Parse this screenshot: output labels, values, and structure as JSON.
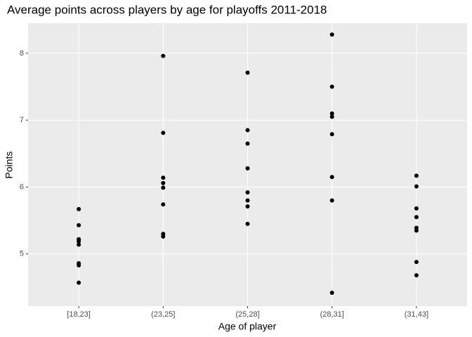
{
  "chart_data": {
    "type": "strip",
    "title": "Average points across players by age for playoffs 2011-2018",
    "x_label": "Age of player",
    "y_label": "Points",
    "categories": [
      "[18,23]",
      "(23,25]",
      "(25,28]",
      "(28,31]",
      "(31,43]"
    ],
    "values": [
      [
        5.67,
        5.43,
        5.22,
        5.19,
        5.14,
        4.86,
        4.83,
        4.57
      ],
      [
        7.96,
        6.81,
        6.14,
        6.06,
        5.99,
        5.74,
        5.3,
        5.26
      ],
      [
        7.71,
        6.85,
        6.65,
        6.28,
        5.92,
        5.8,
        5.71,
        5.45
      ],
      [
        8.28,
        7.5,
        7.1,
        7.05,
        6.79,
        6.15,
        5.8,
        4.42
      ],
      [
        6.17,
        6.01,
        5.68,
        5.55,
        5.39,
        5.35,
        4.88,
        4.68
      ]
    ],
    "color": "#000000",
    "ylim": [
      4.22,
      8.45
    ],
    "yticks": [
      5,
      6,
      7,
      8
    ],
    "grid": true
  }
}
